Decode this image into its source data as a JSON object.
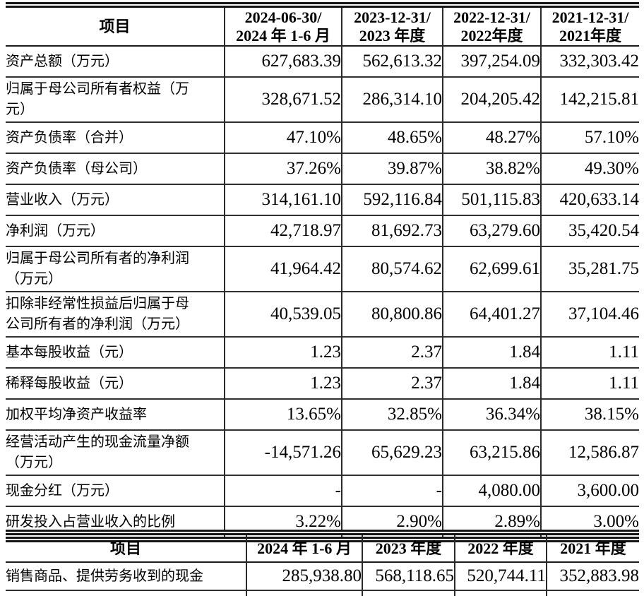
{
  "table1": {
    "name": "key-financial-indicators-table",
    "headers": [
      [
        "项目"
      ],
      [
        "2024-06-30/",
        "2024 年 1-6 月"
      ],
      [
        "2023-12-31/",
        "2023 年度"
      ],
      [
        "2022-12-31/",
        "2022年度"
      ],
      [
        "2021-12-31/",
        "2021年度"
      ]
    ],
    "rows": [
      {
        "label": "资产总额（万元）",
        "tall": false,
        "values": [
          "627,683.39",
          "562,613.32",
          "397,254.09",
          "332,303.42"
        ]
      },
      {
        "label": "归属于母公司所有者权益（万\n元）",
        "tall": true,
        "values": [
          "328,671.52",
          "286,314.10",
          "204,205.42",
          "142,215.81"
        ]
      },
      {
        "label": "资产负债率（合并）",
        "tall": false,
        "values": [
          "47.10%",
          "48.65%",
          "48.27%",
          "57.10%"
        ]
      },
      {
        "label": "资产负债率（母公司）",
        "tall": false,
        "values": [
          "37.26%",
          "39.87%",
          "38.82%",
          "49.30%"
        ]
      },
      {
        "label": "营业收入（万元）",
        "tall": false,
        "values": [
          "314,161.10",
          "592,116.84",
          "501,115.83",
          "420,633.14"
        ]
      },
      {
        "label": "净利润（万元）",
        "tall": false,
        "values": [
          "42,718.97",
          "81,692.73",
          "63,279.60",
          "35,420.54"
        ]
      },
      {
        "label": "归属于母公司所有者的净利润\n（万元）",
        "tall": true,
        "values": [
          "41,964.42",
          "80,574.62",
          "62,699.61",
          "35,281.75"
        ]
      },
      {
        "label": "扣除非经常性损益后归属于母\n公司所有者的净利润（万元）",
        "tall": true,
        "values": [
          "40,539.05",
          "80,800.86",
          "64,401.27",
          "37,104.46"
        ]
      },
      {
        "label": "基本每股收益（元）",
        "tall": false,
        "values": [
          "1.23",
          "2.37",
          "1.84",
          "1.11"
        ]
      },
      {
        "label": "稀释每股收益（元）",
        "tall": false,
        "values": [
          "1.23",
          "2.37",
          "1.84",
          "1.11"
        ]
      },
      {
        "label": "加权平均净资产收益率",
        "tall": false,
        "values": [
          "13.65%",
          "32.85%",
          "36.34%",
          "38.15%"
        ]
      },
      {
        "label": "经营活动产生的现金流量净额\n（万元）",
        "tall": true,
        "values": [
          "-14,571.26",
          "65,629.23",
          "63,215.86",
          "12,586.87"
        ]
      },
      {
        "label": "现金分红（万元）",
        "tall": false,
        "values": [
          "-",
          "-",
          "4,080.00",
          "3,600.00"
        ]
      },
      {
        "label": "研发投入占营业收入的比例",
        "tall": false,
        "values": [
          "3.22%",
          "2.90%",
          "2.89%",
          "3.00%"
        ]
      }
    ]
  },
  "table2": {
    "name": "cash-flow-items-table",
    "headers": [
      [
        "项目"
      ],
      [
        "2024 年 1-6 月"
      ],
      [
        "2023 年度"
      ],
      [
        "2022 年度"
      ],
      [
        "2021 年度"
      ]
    ],
    "rows": [
      {
        "label": "销售商品、提供劳务收到的现金",
        "tall": false,
        "values": [
          "285,938.80",
          "568,118.65",
          "520,744.11",
          "352,883.98"
        ]
      }
    ],
    "has_clipped_next_row": true
  }
}
